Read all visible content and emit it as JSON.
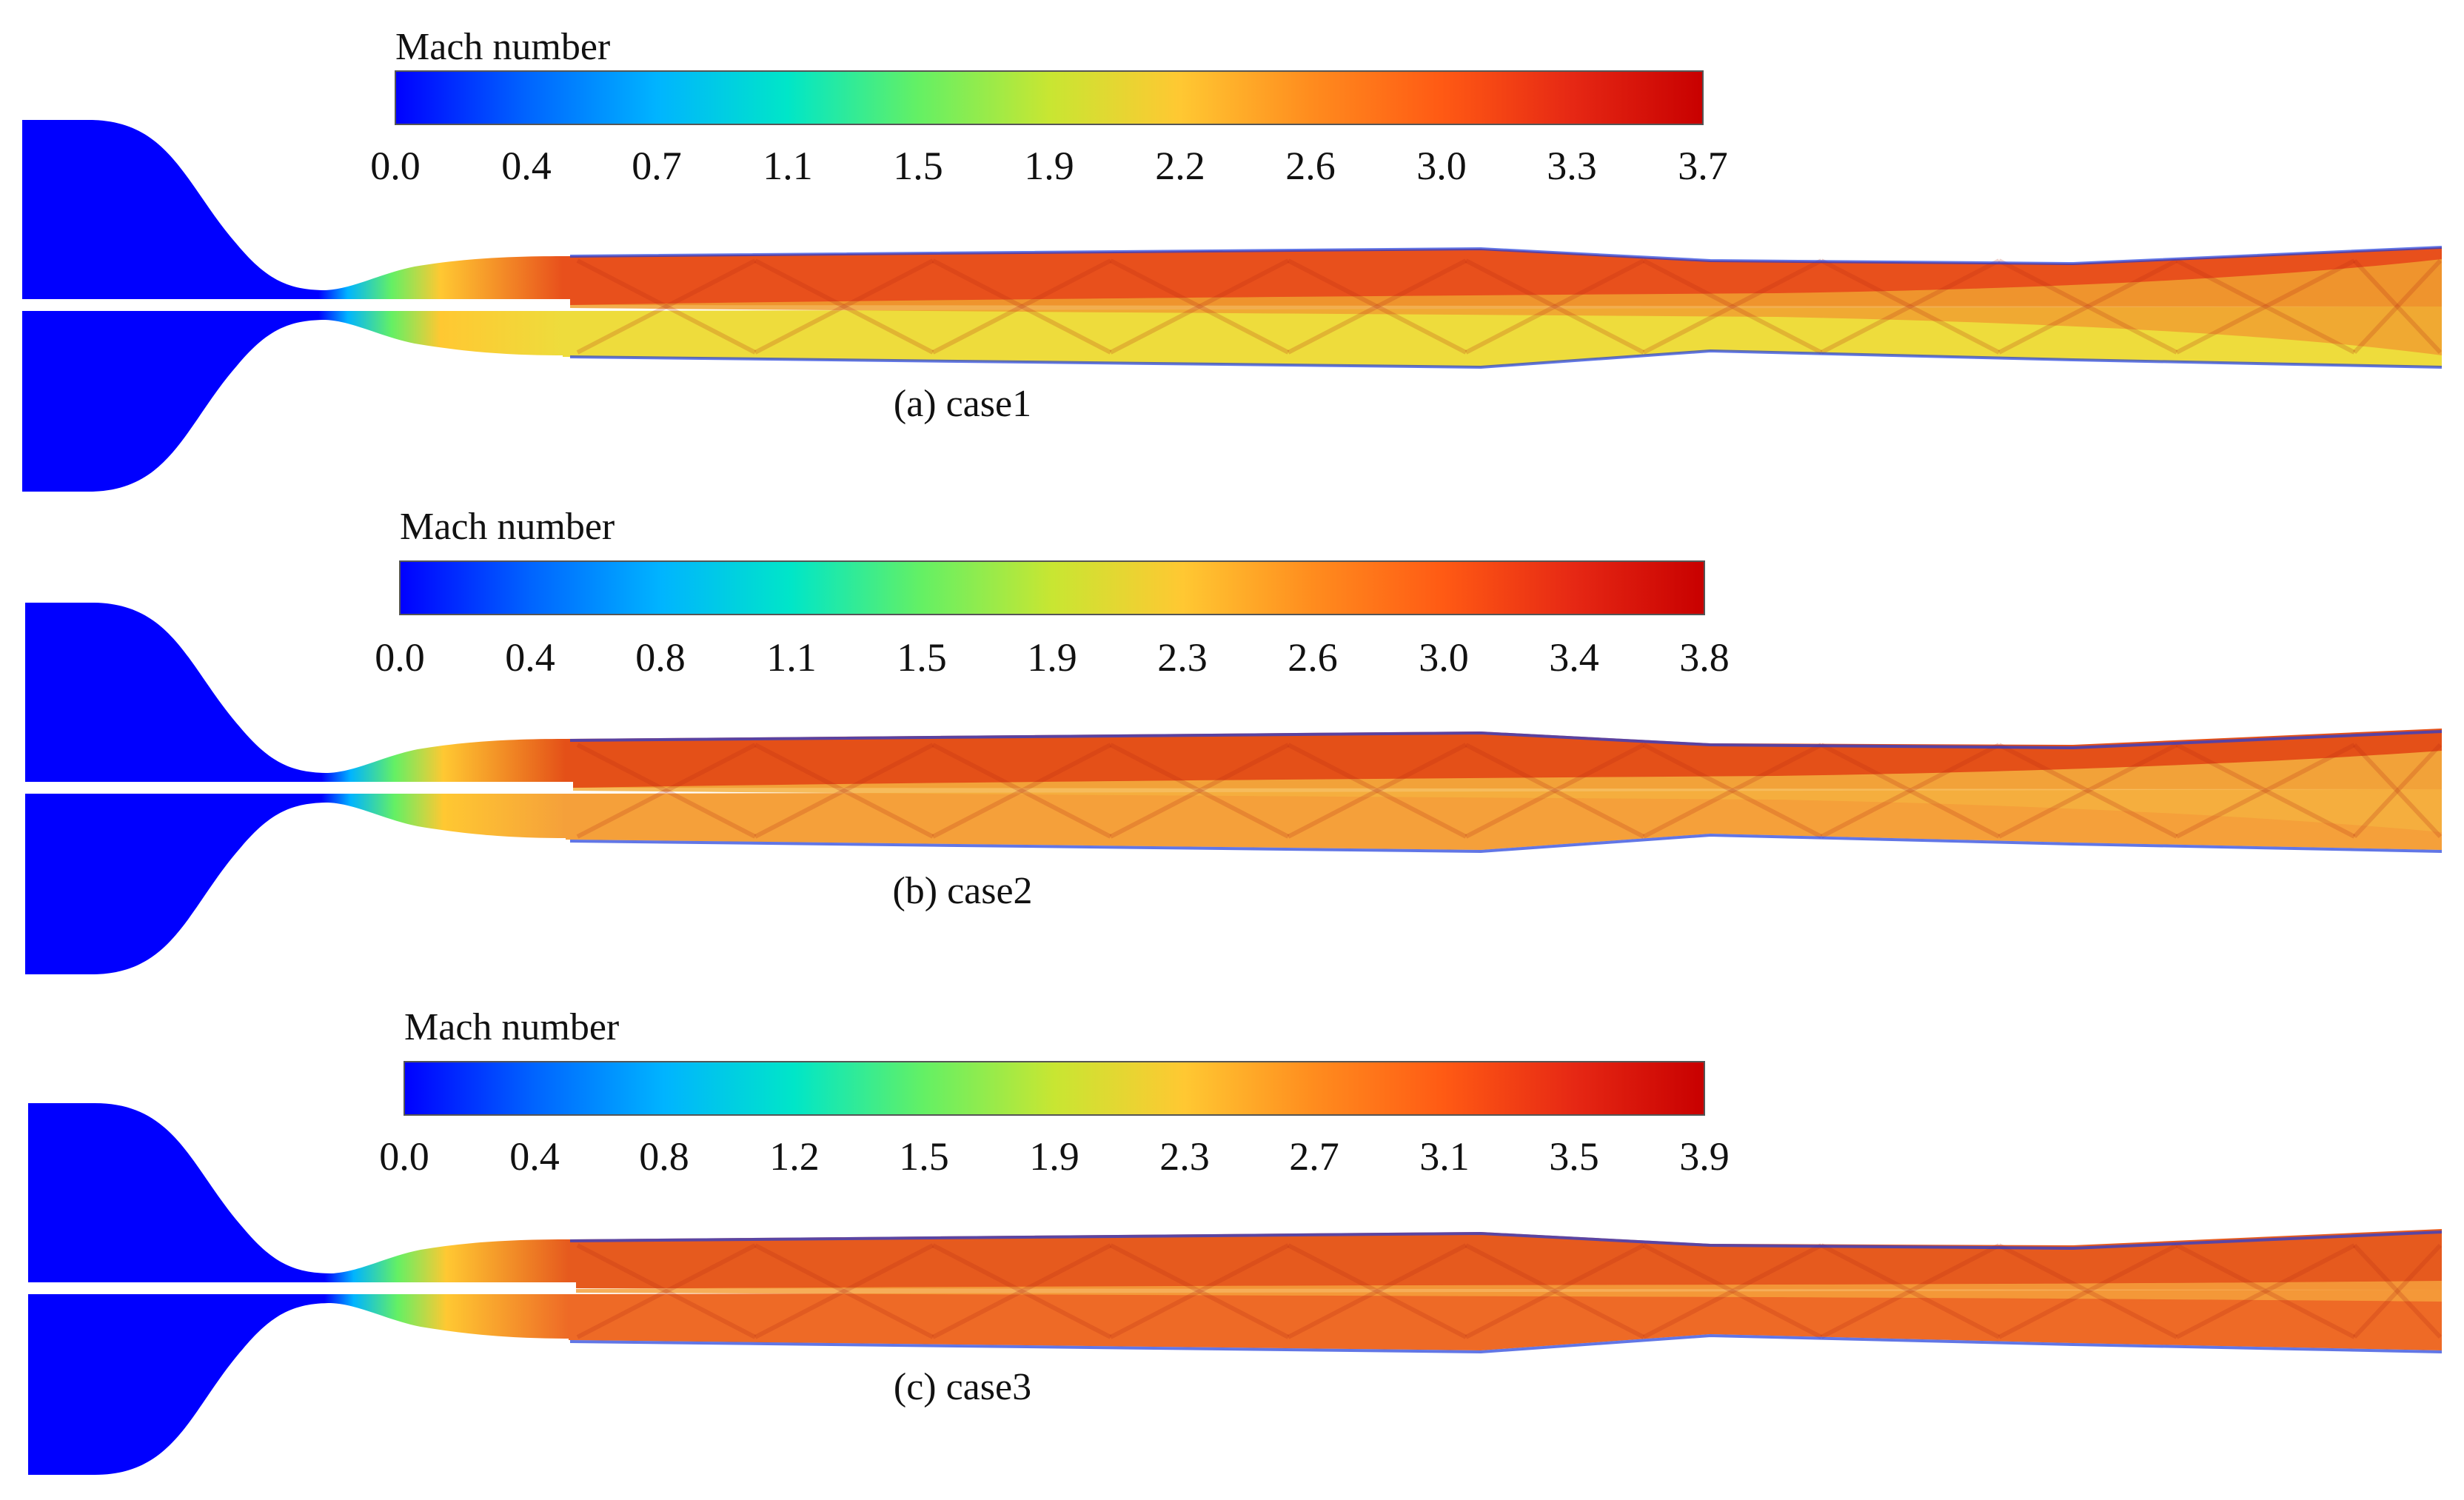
{
  "figure": {
    "colormap": [
      "#0000ff",
      "#0064ff",
      "#00b4ff",
      "#00e6c8",
      "#64f064",
      "#c8e632",
      "#ffc832",
      "#ff8c1e",
      "#ff5a14",
      "#e62814",
      "#c80000"
    ],
    "panels": [
      {
        "id": "a",
        "caption": "(a) case1",
        "colorbar": {
          "title": "Mach number",
          "min": 0.0,
          "max": 3.7,
          "ticks": [
            "0.0",
            "0.4",
            "0.7",
            "1.1",
            "1.5",
            "1.9",
            "2.2",
            "2.6",
            "3.0",
            "3.3",
            "3.7"
          ]
        },
        "flow": {
          "upper_stream_color": "#e8501c",
          "lower_stream_color": "#eedc3c",
          "shear_layer_color": "#f0a030",
          "inlet_color": "#0000ff"
        }
      },
      {
        "id": "b",
        "caption": "(b) case2",
        "colorbar": {
          "title": "Mach number",
          "min": 0.0,
          "max": 3.8,
          "ticks": [
            "0.0",
            "0.4",
            "0.8",
            "1.1",
            "1.5",
            "1.9",
            "2.3",
            "2.6",
            "3.0",
            "3.4",
            "3.8"
          ]
        },
        "flow": {
          "upper_stream_color": "#e45018",
          "lower_stream_color": "#f5a03a",
          "shear_layer_color": "#f5b040",
          "inlet_color": "#0000ff"
        }
      },
      {
        "id": "c",
        "caption": "(c) case3",
        "colorbar": {
          "title": "Mach number",
          "min": 0.0,
          "max": 3.9,
          "ticks": [
            "0.0",
            "0.4",
            "0.8",
            "1.2",
            "1.5",
            "1.9",
            "2.3",
            "2.7",
            "3.1",
            "3.5",
            "3.9"
          ]
        },
        "flow": {
          "upper_stream_color": "#e65a1e",
          "lower_stream_color": "#ee6a26",
          "shear_layer_color": "#f5a03c",
          "inlet_color": "#0000ff"
        }
      }
    ]
  }
}
